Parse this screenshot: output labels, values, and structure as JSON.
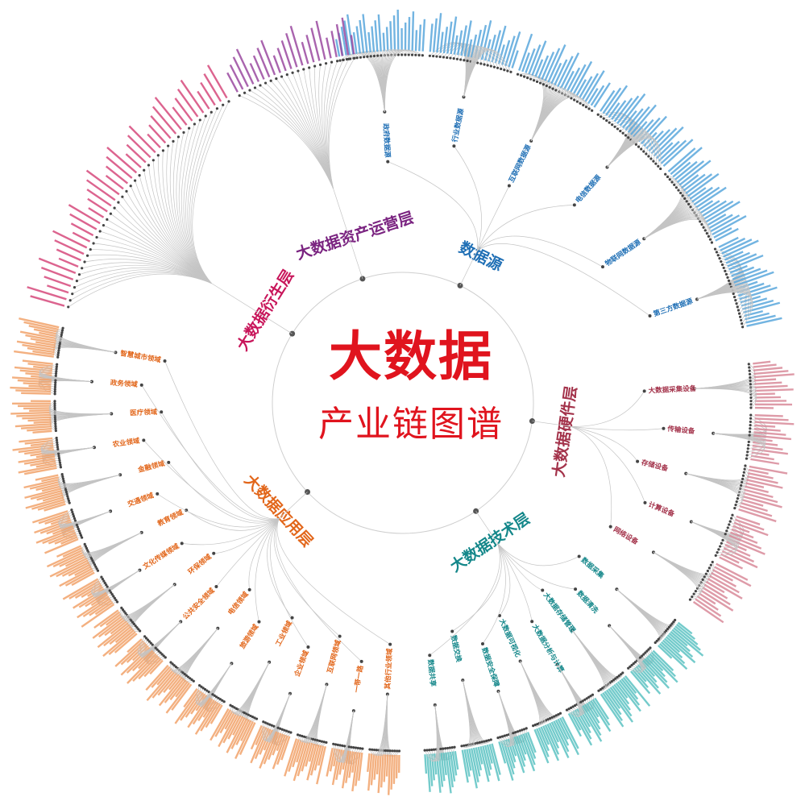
{
  "title": "大数据",
  "subtitle": "产业链图谱",
  "layers": [
    {
      "name": "数据源",
      "color": "#1f6fb5",
      "leaf_color": "#5aa7dc",
      "branches": [
        "政府数据源",
        "行业数据源",
        "互联网数据源",
        "电信数据源",
        "物联网数据源",
        "第三方数据源"
      ]
    },
    {
      "name": "大数据硬件层",
      "color": "#a3324a",
      "leaf_color": "#d98a9a",
      "branches": [
        "大数据采集设备",
        "传输设备",
        "存储设备",
        "计算设备",
        "网络设备"
      ]
    },
    {
      "name": "大数据技术层",
      "color": "#14878a",
      "leaf_color": "#5cc3c3",
      "branches": [
        "数据采集",
        "数据清洗",
        "大数据存储管理",
        "大数据分析与计算",
        "大数据可视化",
        "数据安全保障",
        "数据交换",
        "数据共享"
      ]
    },
    {
      "name": "大数据应用层",
      "color": "#e2661a",
      "leaf_color": "#f2a36b",
      "branches": [
        "其他行业领域",
        "一带一路",
        "互联网领域",
        "企业领域",
        "工业领域",
        "旅游领域",
        "电信领域",
        "公共安全领域",
        "环保领域",
        "文化传媒领域",
        "教育领域",
        "交通领域",
        "金融领域",
        "农业领域",
        "医疗领域",
        "政务领域",
        "智慧城市领域"
      ]
    },
    {
      "name": "大数据衍生层",
      "color": "#c8155a",
      "leaf_color": "#d64a7c",
      "branches": []
    },
    {
      "name": "大数据资产运营层",
      "color": "#7a2380",
      "leaf_color": "#9b4aa0",
      "branches": []
    }
  ]
}
